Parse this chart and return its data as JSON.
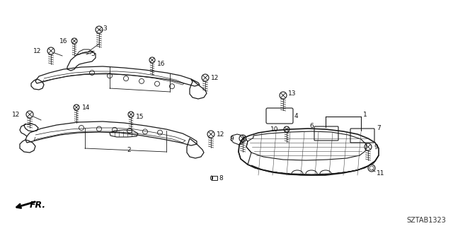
{
  "diagram_id": "SZTAB1323",
  "background_color": "#ffffff",
  "line_color": "#1a1a1a",
  "fig_width": 6.4,
  "fig_height": 3.2,
  "dpi": 100,
  "fr_label": "FR."
}
